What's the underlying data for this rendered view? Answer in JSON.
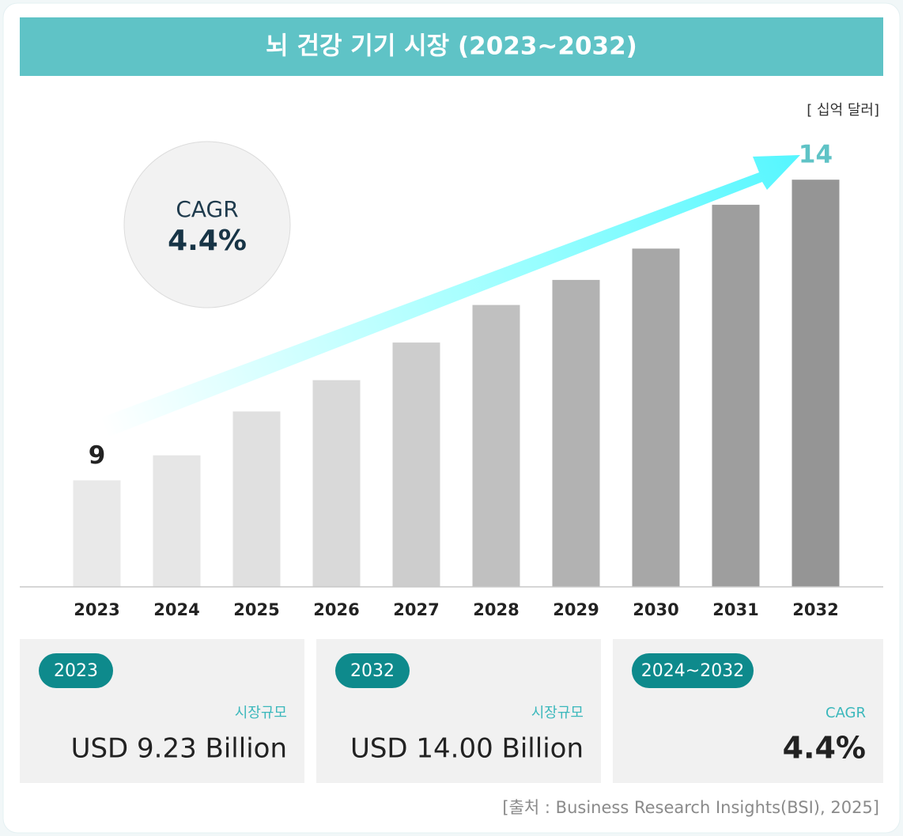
{
  "chart_data": {
    "type": "bar",
    "title": "뇌 건강 기기 시장 (2023~2032)",
    "unit_label": "[ 십억 달러]",
    "categories": [
      "2023",
      "2024",
      "2025",
      "2026",
      "2027",
      "2028",
      "2029",
      "2030",
      "2031",
      "2032"
    ],
    "values": [
      9.2,
      9.6,
      10.3,
      10.8,
      11.4,
      12.0,
      12.4,
      12.9,
      13.6,
      14.0
    ],
    "value_labels": [
      "9",
      null,
      null,
      null,
      null,
      null,
      null,
      null,
      null,
      "14"
    ],
    "colors": [
      "#e9e9e9",
      "#e6e6e6",
      "#e0e0e0",
      "#d9d9d9",
      "#cdcdcd",
      "#c0c0c0",
      "#b2b2b2",
      "#a7a7a7",
      "#9e9e9e",
      "#959595"
    ],
    "ylim": [
      7.5,
      15
    ],
    "cagr_badge": {
      "label": "CAGR",
      "value": "4.4%"
    },
    "cards": [
      {
        "badge": "2023",
        "label": "시장규모",
        "value": "USD 9.23 Billion"
      },
      {
        "badge": "2032",
        "label": "시장규모",
        "value": "USD 14.00 Billion"
      },
      {
        "badge": "2024~2032",
        "label": "CAGR",
        "value": "4.4%"
      }
    ],
    "source": "[출처 : Business Research Insights(BSI), 2025]"
  }
}
